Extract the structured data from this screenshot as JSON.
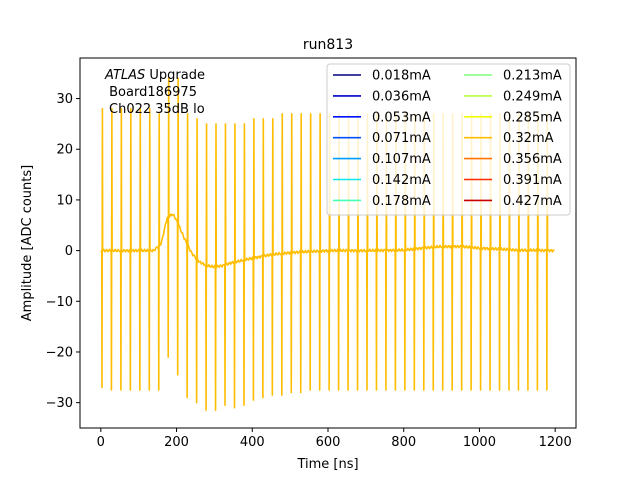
{
  "chart_data": {
    "type": "line",
    "title": "run813",
    "xlabel": "Time [ns]",
    "ylabel": "Amplitude [ADC counts]",
    "xlim": [
      -55,
      1255
    ],
    "ylim": [
      -35,
      38
    ],
    "xticks": [
      0,
      200,
      400,
      600,
      800,
      1000,
      1200
    ],
    "yticks": [
      -30,
      -20,
      -10,
      0,
      10,
      20,
      30
    ],
    "xtick_labels": [
      "0",
      "200",
      "400",
      "600",
      "800",
      "1000",
      "1200"
    ],
    "ytick_labels": [
      "−30",
      "−20",
      "−10",
      "0",
      "10",
      "20",
      "30"
    ],
    "grid": false,
    "legend": {
      "placement": "top-right",
      "columns": 2,
      "entries": [
        {
          "label": "0.018mA",
          "color": "#00007f"
        },
        {
          "label": "0.036mA",
          "color": "#0000c8"
        },
        {
          "label": "0.053mA",
          "color": "#0014ff"
        },
        {
          "label": "0.071mA",
          "color": "#0050ff"
        },
        {
          "label": "0.107mA",
          "color": "#009cff"
        },
        {
          "label": "0.142mA",
          "color": "#0ee8e8"
        },
        {
          "label": "0.178mA",
          "color": "#45ffb2"
        },
        {
          "label": "0.213mA",
          "color": "#7dff7a"
        },
        {
          "label": "0.249mA",
          "color": "#b6ff41"
        },
        {
          "label": "0.285mA",
          "color": "#f1fc06"
        },
        {
          "label": "0.32mA",
          "color": "#ffbd00"
        },
        {
          "label": "0.356mA",
          "color": "#ff7300"
        },
        {
          "label": "0.391mA",
          "color": "#ff2900"
        },
        {
          "label": "0.427mA",
          "color": "#c80000"
        }
      ]
    },
    "annotation": {
      "italic": "ATLAS",
      "rest": " Upgrade",
      "line2": " Board186975",
      "line3": "Ch022 35dB lo"
    },
    "waveform": {
      "color": "#ffbd00",
      "t_start": 0,
      "t_end": 1200,
      "period": 25,
      "spike_offset": 3,
      "baseline": [
        [
          0,
          0
        ],
        [
          140,
          0
        ],
        [
          160,
          1.5
        ],
        [
          175,
          6.5
        ],
        [
          190,
          7.2
        ],
        [
          200,
          6
        ],
        [
          220,
          2.5
        ],
        [
          240,
          -0.5
        ],
        [
          260,
          -2.2
        ],
        [
          280,
          -3.0
        ],
        [
          300,
          -3.2
        ],
        [
          320,
          -3.0
        ],
        [
          340,
          -2.5
        ],
        [
          370,
          -2.0
        ],
        [
          400,
          -1.5
        ],
        [
          450,
          -0.8
        ],
        [
          500,
          -0.4
        ],
        [
          550,
          -0.2
        ],
        [
          600,
          0
        ],
        [
          700,
          0
        ],
        [
          800,
          0.1
        ],
        [
          850,
          0.5
        ],
        [
          900,
          0.8
        ],
        [
          950,
          0.8
        ],
        [
          1000,
          0.5
        ],
        [
          1100,
          0.1
        ],
        [
          1200,
          0
        ]
      ],
      "pulses": [
        [
          28,
          -27
        ],
        [
          28,
          -27.5
        ],
        [
          28,
          -27.5
        ],
        [
          28,
          -27.5
        ],
        [
          28,
          -27.5
        ],
        [
          28,
          -27.5
        ],
        [
          27,
          -27.5
        ],
        [
          34,
          -21
        ],
        [
          34,
          -24.5
        ],
        [
          27,
          -29
        ],
        [
          26,
          -30
        ],
        [
          25,
          -31.5
        ],
        [
          25,
          -31.5
        ],
        [
          25,
          -30.5
        ],
        [
          25,
          -31
        ],
        [
          25,
          -30.5
        ],
        [
          26,
          -29.5
        ],
        [
          26,
          -29
        ],
        [
          26,
          -28.5
        ],
        [
          27,
          -28.5
        ],
        [
          27,
          -28
        ],
        [
          27,
          -28
        ],
        [
          27,
          -27.5
        ],
        [
          27,
          -27.5
        ],
        [
          27,
          -27.5
        ],
        [
          27,
          -27.5
        ],
        [
          27,
          -27.5
        ],
        [
          27,
          -27.5
        ],
        [
          27,
          -27.5
        ],
        [
          27,
          -27.5
        ],
        [
          27,
          -27.5
        ],
        [
          27,
          -27.5
        ],
        [
          27,
          -27.5
        ],
        [
          27,
          -27.5
        ],
        [
          27,
          -27.5
        ],
        [
          27,
          -27.5
        ],
        [
          27,
          -27.5
        ],
        [
          27,
          -27.5
        ],
        [
          27,
          -27.5
        ],
        [
          27,
          -27.5
        ],
        [
          27,
          -27.5
        ],
        [
          27,
          -27.5
        ],
        [
          27,
          -27.5
        ],
        [
          27,
          -27.5
        ],
        [
          27,
          -27.5
        ],
        [
          27,
          -27.5
        ],
        [
          27,
          -27.5
        ],
        [
          27,
          -27.5
        ]
      ]
    }
  }
}
